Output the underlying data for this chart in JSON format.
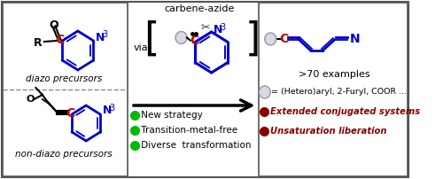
{
  "blue": "#0000cc",
  "dark_red": "#8b0000",
  "red": "#cc0000",
  "green": "#00bb00",
  "black": "#000000",
  "gray": "#888888",
  "light_gray": "#dddddd",
  "panel_left_label_top": "diazo precursors",
  "panel_left_label_bot": "non-diazo precursors",
  "via_text": "via",
  "carbene_azide_text": "carbene-azide",
  "examples_text": ">70 examples",
  "circle_label": "= (Hetero)aryl, 2-Furyl, COOR ...",
  "bullet1": " New strategy",
  "bullet2": " Transition-metal-free",
  "bullet3": " Diverse  transformation",
  "dark_red_text1": "Extended conjugated systems",
  "dark_red_text2": "Unsaturation liberation",
  "figsize": [
    5.0,
    2.02
  ],
  "dpi": 100
}
